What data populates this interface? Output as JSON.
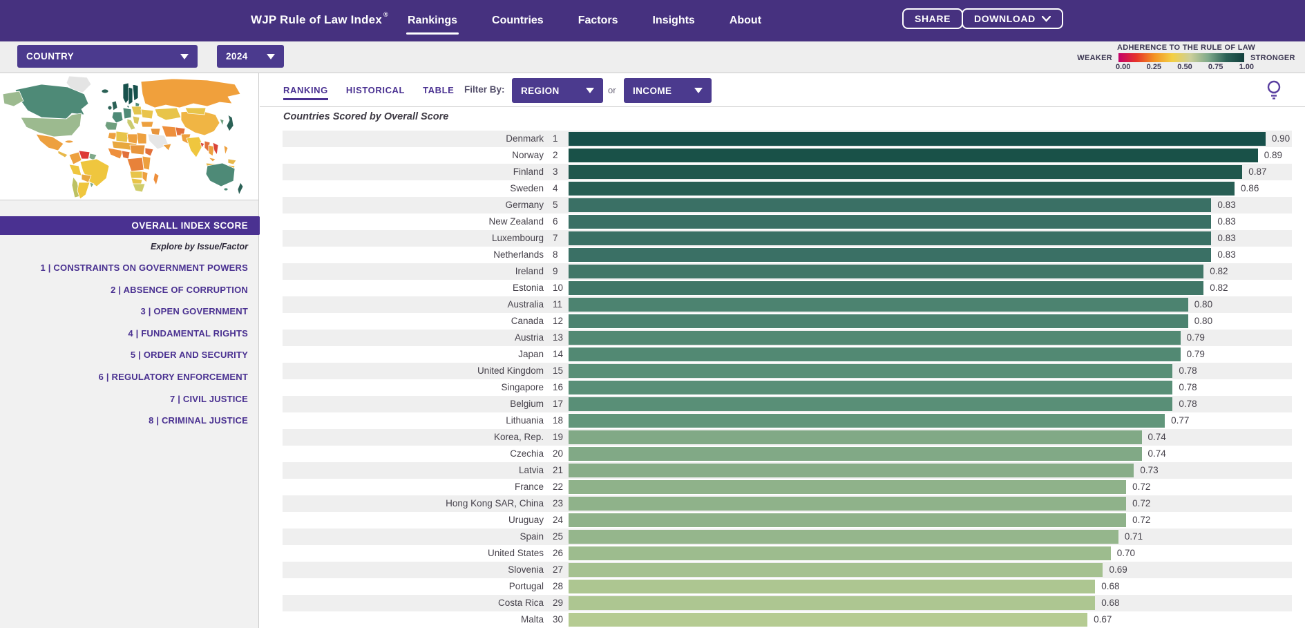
{
  "nav": {
    "title": "WJP Rule of Law Index",
    "registered_mark": "®",
    "links": [
      {
        "label": "Rankings",
        "active": true
      },
      {
        "label": "Countries",
        "active": false
      },
      {
        "label": "Factors",
        "active": false
      },
      {
        "label": "Insights",
        "active": false
      },
      {
        "label": "About",
        "active": false
      }
    ],
    "share_button": "SHARE",
    "download_button": "DOWNLOAD"
  },
  "filter_bar": {
    "country_dropdown_value": "COUNTRY",
    "year_dropdown_value": "2024"
  },
  "legend": {
    "title": "ADHERENCE TO THE RULE OF LAW",
    "weaker_label": "WEAKER",
    "stronger_label": "STRONGER",
    "tick_labels": [
      "0.00",
      "0.25",
      "0.50",
      "0.75",
      "1.00"
    ],
    "gradient_colors": [
      "#c40069",
      "#e63329",
      "#f39422",
      "#f3cf45",
      "#cccf9a",
      "#7fa98a",
      "#2b6156",
      "#123f3c"
    ]
  },
  "sidebar": {
    "overall_index_label": "OVERALL INDEX SCORE",
    "explore_label": "Explore by Issue/Factor",
    "factors": [
      "1 | CONSTRAINTS ON GOVERNMENT POWERS",
      "2 | ABSENCE OF CORRUPTION",
      "3 | OPEN GOVERNMENT",
      "4 | FUNDAMENTAL RIGHTS",
      "5 | ORDER AND SECURITY",
      "6 | REGULATORY ENFORCEMENT",
      "7 | CIVIL JUSTICE",
      "8 | CRIMINAL JUSTICE"
    ]
  },
  "content_tabs": {
    "tabs": [
      {
        "label": "RANKING",
        "active": true
      },
      {
        "label": "HISTORICAL",
        "active": false
      },
      {
        "label": "TABLE",
        "active": false
      }
    ],
    "filter_by_label": "Filter By:",
    "region_dropdown_value": "REGION",
    "or_label": "or",
    "income_dropdown_value": "INCOME"
  },
  "chart_data": {
    "type": "bar",
    "title": "Countries Scored by Overall Score",
    "xlim": [
      0,
      1
    ],
    "legend_position": "top-right",
    "countries": [
      {
        "rank": 1,
        "name": "Denmark",
        "score": 0.9,
        "display": "0.90",
        "color": "#174f4a"
      },
      {
        "rank": 2,
        "name": "Norway",
        "score": 0.89,
        "display": "0.89",
        "color": "#195148"
      },
      {
        "rank": 3,
        "name": "Finland",
        "score": 0.87,
        "display": "0.87",
        "color": "#20574d"
      },
      {
        "rank": 4,
        "name": "Sweden",
        "score": 0.86,
        "display": "0.86",
        "color": "#285e54"
      },
      {
        "rank": 5,
        "name": "Germany",
        "score": 0.83,
        "display": "0.83",
        "color": "#3a7065"
      },
      {
        "rank": 6,
        "name": "New Zealand",
        "score": 0.83,
        "display": "0.83",
        "color": "#3a7065"
      },
      {
        "rank": 7,
        "name": "Luxembourg",
        "score": 0.83,
        "display": "0.83",
        "color": "#3a7065"
      },
      {
        "rank": 8,
        "name": "Netherlands",
        "score": 0.83,
        "display": "0.83",
        "color": "#3a7065"
      },
      {
        "rank": 9,
        "name": "Ireland",
        "score": 0.82,
        "display": "0.82",
        "color": "#417768"
      },
      {
        "rank": 10,
        "name": "Estonia",
        "score": 0.82,
        "display": "0.82",
        "color": "#417768"
      },
      {
        "rank": 11,
        "name": "Australia",
        "score": 0.8,
        "display": "0.80",
        "color": "#4c8370"
      },
      {
        "rank": 12,
        "name": "Canada",
        "score": 0.8,
        "display": "0.80",
        "color": "#4c8370"
      },
      {
        "rank": 13,
        "name": "Austria",
        "score": 0.79,
        "display": "0.79",
        "color": "#528973"
      },
      {
        "rank": 14,
        "name": "Japan",
        "score": 0.79,
        "display": "0.79",
        "color": "#528973"
      },
      {
        "rank": 15,
        "name": "United Kingdom",
        "score": 0.78,
        "display": "0.78",
        "color": "#598f77"
      },
      {
        "rank": 16,
        "name": "Singapore",
        "score": 0.78,
        "display": "0.78",
        "color": "#598f77"
      },
      {
        "rank": 17,
        "name": "Belgium",
        "score": 0.78,
        "display": "0.78",
        "color": "#598f77"
      },
      {
        "rank": 18,
        "name": "Lithuania",
        "score": 0.77,
        "display": "0.77",
        "color": "#61967b"
      },
      {
        "rank": 19,
        "name": "Korea, Rep.",
        "score": 0.74,
        "display": "0.74",
        "color": "#81a986"
      },
      {
        "rank": 20,
        "name": "Czechia",
        "score": 0.74,
        "display": "0.74",
        "color": "#81a986"
      },
      {
        "rank": 21,
        "name": "Latvia",
        "score": 0.73,
        "display": "0.73",
        "color": "#88ad88"
      },
      {
        "rank": 22,
        "name": "France",
        "score": 0.72,
        "display": "0.72",
        "color": "#8fb28a"
      },
      {
        "rank": 23,
        "name": "Hong Kong SAR, China",
        "score": 0.72,
        "display": "0.72",
        "color": "#8fb28a"
      },
      {
        "rank": 24,
        "name": "Uruguay",
        "score": 0.72,
        "display": "0.72",
        "color": "#8fb28a"
      },
      {
        "rank": 25,
        "name": "Spain",
        "score": 0.71,
        "display": "0.71",
        "color": "#95b68c"
      },
      {
        "rank": 26,
        "name": "United States",
        "score": 0.7,
        "display": "0.70",
        "color": "#9dbc8e"
      },
      {
        "rank": 27,
        "name": "Slovenia",
        "score": 0.69,
        "display": "0.69",
        "color": "#a5c190"
      },
      {
        "rank": 28,
        "name": "Portugal",
        "score": 0.68,
        "display": "0.68",
        "color": "#adc691"
      },
      {
        "rank": 29,
        "name": "Costa Rica",
        "score": 0.68,
        "display": "0.68",
        "color": "#adc691"
      },
      {
        "rank": 30,
        "name": "Malta",
        "score": 0.67,
        "display": "0.67",
        "color": "#b5cb92"
      }
    ]
  }
}
